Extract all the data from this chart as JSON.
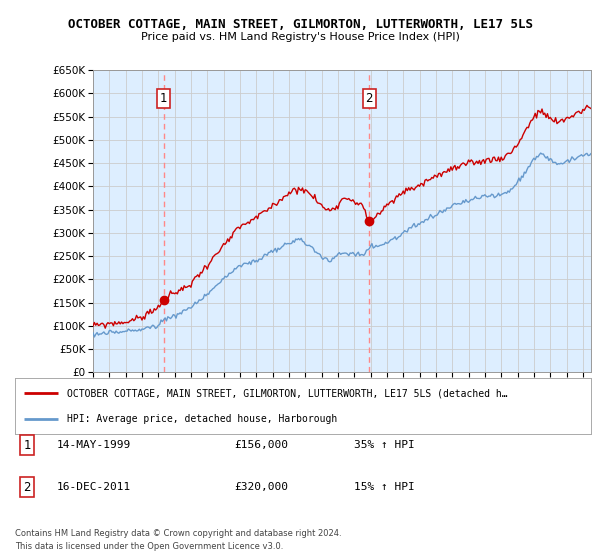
{
  "title": "OCTOBER COTTAGE, MAIN STREET, GILMORTON, LUTTERWORTH, LE17 5LS",
  "subtitle": "Price paid vs. HM Land Registry's House Price Index (HPI)",
  "legend_line1": "OCTOBER COTTAGE, MAIN STREET, GILMORTON, LUTTERWORTH, LE17 5LS (detached h…",
  "legend_line2": "HPI: Average price, detached house, Harborough",
  "transactions": [
    {
      "num": 1,
      "date": "14-MAY-1999",
      "price": "£156,000",
      "pct": "35% ↑ HPI",
      "year": 1999.37
    },
    {
      "num": 2,
      "date": "16-DEC-2011",
      "price": "£320,000",
      "pct": "15% ↑ HPI",
      "year": 2011.95
    }
  ],
  "footnote1": "Contains HM Land Registry data © Crown copyright and database right 2024.",
  "footnote2": "This data is licensed under the Open Government Licence v3.0.",
  "red_color": "#cc0000",
  "blue_color": "#6699cc",
  "blue_fill": "#ddeeff",
  "vline_color": "#ff8888",
  "grid_color": "#cccccc",
  "ylim": [
    0,
    650000
  ],
  "yticks": [
    0,
    50000,
    100000,
    150000,
    200000,
    250000,
    300000,
    350000,
    400000,
    450000,
    500000,
    550000,
    600000,
    650000
  ],
  "xstart": 1995.0,
  "xend": 2025.5
}
